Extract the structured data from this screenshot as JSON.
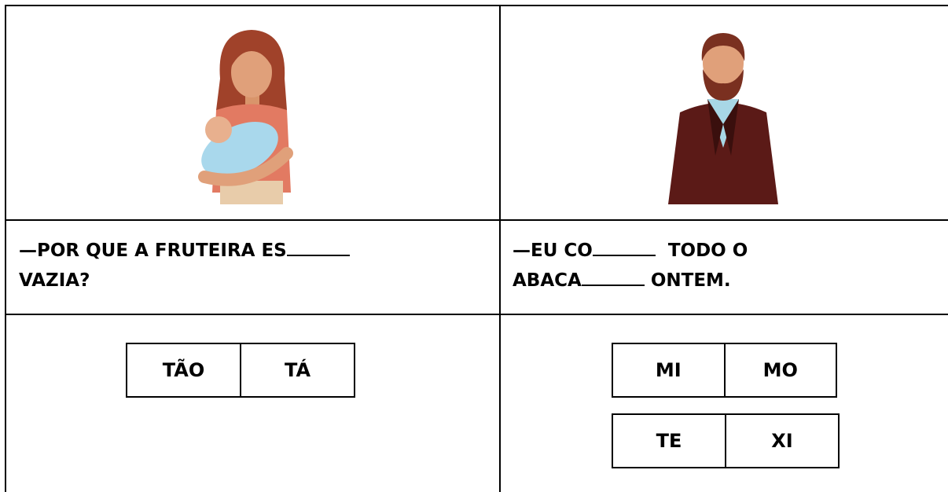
{
  "cells": [
    {
      "prompt": {
        "line1": "—POR QUE A FRUTEIRA ES",
        "line2": "VAZIA?"
      },
      "options": [
        [
          "TÃO",
          "TÁ"
        ]
      ]
    },
    {
      "prompt": {
        "line1a": "—EU CO",
        "line1b": "TODO O",
        "line2a": "ABACA",
        "line2b": "ONTEM."
      },
      "options": [
        [
          "MI",
          "MO"
        ],
        [
          "TE",
          "XI"
        ]
      ]
    }
  ]
}
